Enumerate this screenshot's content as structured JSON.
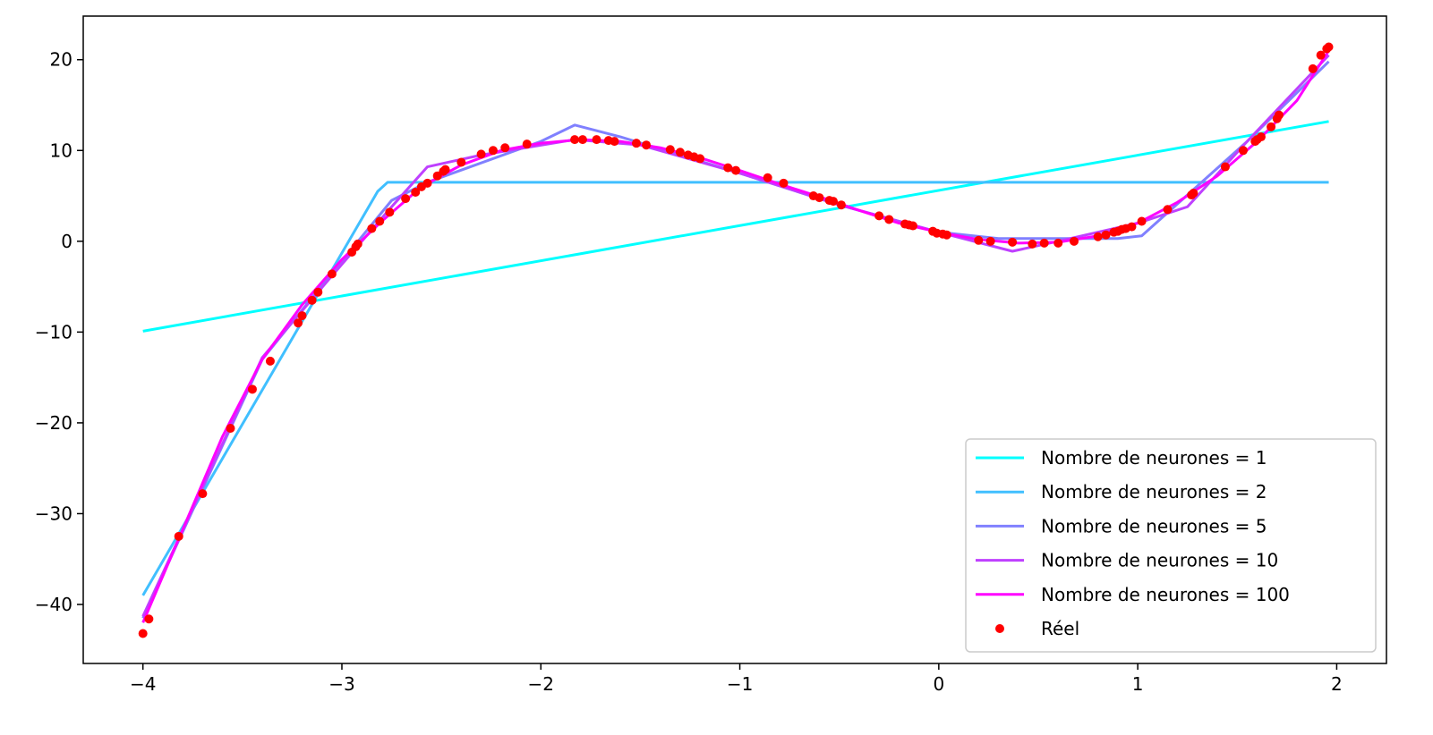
{
  "chart_data": {
    "type": "line",
    "title": "",
    "xlabel": "",
    "ylabel": "",
    "xlim": [
      -4.3,
      2.25
    ],
    "ylim": [
      -46.5,
      24.8
    ],
    "xticks": [
      -4,
      -3,
      -2,
      -1,
      0,
      1,
      2
    ],
    "yticks": [
      -40,
      -30,
      -20,
      -10,
      0,
      10,
      20
    ],
    "xtick_labels": [
      "−4",
      "−3",
      "−2",
      "−1",
      "0",
      "1",
      "2"
    ],
    "ytick_labels": [
      "−40",
      "−30",
      "−20",
      "−10",
      "0",
      "10",
      "20"
    ],
    "grid": false,
    "legend_position": "lower-right",
    "series": [
      {
        "name": "Nombre de neurones = 1",
        "kind": "line",
        "color": "#00ffff",
        "points": [
          [
            -4.0,
            -9.9
          ],
          [
            1.96,
            13.2
          ]
        ]
      },
      {
        "name": "Nombre de neurones = 2",
        "kind": "line",
        "color": "#40bfff",
        "points": [
          [
            -4.0,
            -39.0
          ],
          [
            -2.82,
            5.5
          ],
          [
            -2.77,
            6.5
          ],
          [
            1.96,
            6.5
          ]
        ]
      },
      {
        "name": "Nombre de neurones = 5",
        "kind": "line",
        "color": "#8080ff",
        "points": [
          [
            -4.0,
            -41.5
          ],
          [
            -3.4,
            -13.0
          ],
          [
            -3.05,
            -3.5
          ],
          [
            -2.75,
            4.5
          ],
          [
            -2.57,
            6.5
          ],
          [
            -2.0,
            11.0
          ],
          [
            -1.83,
            12.8
          ],
          [
            -1.6,
            11.5
          ],
          [
            -1.0,
            7.5
          ],
          [
            -0.5,
            4.0
          ],
          [
            0.0,
            1.0
          ],
          [
            0.3,
            0.3
          ],
          [
            0.6,
            0.3
          ],
          [
            0.9,
            0.3
          ],
          [
            1.02,
            0.6
          ],
          [
            1.27,
            5.5
          ],
          [
            1.55,
            11.0
          ],
          [
            1.96,
            19.8
          ]
        ]
      },
      {
        "name": "Nombre de neurones = 10",
        "kind": "line",
        "color": "#bf40ff",
        "points": [
          [
            -4.0,
            -41.3
          ],
          [
            -3.4,
            -12.8
          ],
          [
            -3.05,
            -3.8
          ],
          [
            -2.75,
            3.8
          ],
          [
            -2.57,
            8.2
          ],
          [
            -2.3,
            9.5
          ],
          [
            -1.83,
            11.2
          ],
          [
            -1.5,
            10.6
          ],
          [
            -1.0,
            7.5
          ],
          [
            -0.5,
            4.0
          ],
          [
            0.0,
            1.0
          ],
          [
            0.37,
            -1.1
          ],
          [
            0.6,
            0.0
          ],
          [
            1.0,
            2.0
          ],
          [
            1.25,
            3.8
          ],
          [
            1.55,
            11.0
          ],
          [
            1.96,
            20.5
          ]
        ]
      },
      {
        "name": "Nombre de neurones = 100",
        "kind": "line",
        "color": "#ff00ff",
        "points": [
          [
            -4.0,
            -42.0
          ],
          [
            -3.6,
            -21.5
          ],
          [
            -3.4,
            -13.0
          ],
          [
            -3.2,
            -7.0
          ],
          [
            -3.0,
            -2.0
          ],
          [
            -2.8,
            2.2
          ],
          [
            -2.6,
            6.0
          ],
          [
            -2.4,
            8.4
          ],
          [
            -2.2,
            10.0
          ],
          [
            -2.0,
            10.8
          ],
          [
            -1.8,
            11.2
          ],
          [
            -1.6,
            11.0
          ],
          [
            -1.4,
            10.3
          ],
          [
            -1.2,
            9.2
          ],
          [
            -1.0,
            7.8
          ],
          [
            -0.8,
            6.3
          ],
          [
            -0.6,
            4.9
          ],
          [
            -0.4,
            3.4
          ],
          [
            -0.2,
            2.0
          ],
          [
            0.0,
            1.0
          ],
          [
            0.2,
            0.2
          ],
          [
            0.4,
            -0.2
          ],
          [
            0.6,
            -0.1
          ],
          [
            0.8,
            0.6
          ],
          [
            1.0,
            2.0
          ],
          [
            1.2,
            4.3
          ],
          [
            1.4,
            7.2
          ],
          [
            1.6,
            11.0
          ],
          [
            1.8,
            15.5
          ],
          [
            1.96,
            21.0
          ]
        ]
      },
      {
        "name": "Réel",
        "kind": "scatter",
        "color": "#ff0000",
        "points": [
          [
            -4.0,
            -43.2
          ],
          [
            -3.97,
            -41.6
          ],
          [
            -3.82,
            -32.5
          ],
          [
            -3.7,
            -27.8
          ],
          [
            -3.56,
            -20.6
          ],
          [
            -3.45,
            -16.3
          ],
          [
            -3.36,
            -13.2
          ],
          [
            -3.22,
            -9.0
          ],
          [
            -3.2,
            -8.2
          ],
          [
            -3.15,
            -6.5
          ],
          [
            -3.12,
            -5.6
          ],
          [
            -3.05,
            -3.6
          ],
          [
            -2.95,
            -1.2
          ],
          [
            -2.93,
            -0.6
          ],
          [
            -2.92,
            -0.3
          ],
          [
            -2.85,
            1.4
          ],
          [
            -2.81,
            2.2
          ],
          [
            -2.76,
            3.2
          ],
          [
            -2.68,
            4.7
          ],
          [
            -2.63,
            5.4
          ],
          [
            -2.6,
            6.0
          ],
          [
            -2.57,
            6.4
          ],
          [
            -2.52,
            7.2
          ],
          [
            -2.49,
            7.7
          ],
          [
            -2.48,
            7.9
          ],
          [
            -2.4,
            8.7
          ],
          [
            -2.3,
            9.6
          ],
          [
            -2.24,
            10.0
          ],
          [
            -2.18,
            10.3
          ],
          [
            -2.07,
            10.7
          ],
          [
            -1.83,
            11.2
          ],
          [
            -1.79,
            11.2
          ],
          [
            -1.72,
            11.2
          ],
          [
            -1.66,
            11.1
          ],
          [
            -1.63,
            11.0
          ],
          [
            -1.52,
            10.8
          ],
          [
            -1.47,
            10.6
          ],
          [
            -1.35,
            10.1
          ],
          [
            -1.3,
            9.8
          ],
          [
            -1.26,
            9.5
          ],
          [
            -1.23,
            9.3
          ],
          [
            -1.2,
            9.1
          ],
          [
            -1.06,
            8.1
          ],
          [
            -1.02,
            7.8
          ],
          [
            -0.86,
            7.0
          ],
          [
            -0.78,
            6.4
          ],
          [
            -0.63,
            5.0
          ],
          [
            -0.6,
            4.8
          ],
          [
            -0.55,
            4.5
          ],
          [
            -0.53,
            4.4
          ],
          [
            -0.49,
            4.0
          ],
          [
            -0.3,
            2.8
          ],
          [
            -0.25,
            2.4
          ],
          [
            -0.17,
            1.9
          ],
          [
            -0.15,
            1.8
          ],
          [
            -0.13,
            1.7
          ],
          [
            -0.03,
            1.1
          ],
          [
            -0.01,
            0.9
          ],
          [
            0.02,
            0.8
          ],
          [
            0.04,
            0.7
          ],
          [
            0.2,
            0.1
          ],
          [
            0.26,
            0.0
          ],
          [
            0.37,
            -0.1
          ],
          [
            0.47,
            -0.3
          ],
          [
            0.53,
            -0.2
          ],
          [
            0.6,
            -0.2
          ],
          [
            0.68,
            0.0
          ],
          [
            0.8,
            0.5
          ],
          [
            0.84,
            0.7
          ],
          [
            0.88,
            1.0
          ],
          [
            0.9,
            1.1
          ],
          [
            0.92,
            1.3
          ],
          [
            0.94,
            1.4
          ],
          [
            0.97,
            1.6
          ],
          [
            1.02,
            2.2
          ],
          [
            1.15,
            3.5
          ],
          [
            1.27,
            5.1
          ],
          [
            1.28,
            5.3
          ],
          [
            1.44,
            8.2
          ],
          [
            1.53,
            10.0
          ],
          [
            1.59,
            11.0
          ],
          [
            1.6,
            11.2
          ],
          [
            1.62,
            11.5
          ],
          [
            1.67,
            12.6
          ],
          [
            1.7,
            13.5
          ],
          [
            1.71,
            13.9
          ],
          [
            1.88,
            19.0
          ],
          [
            1.92,
            20.5
          ],
          [
            1.95,
            21.2
          ],
          [
            1.96,
            21.4
          ]
        ]
      }
    ]
  }
}
